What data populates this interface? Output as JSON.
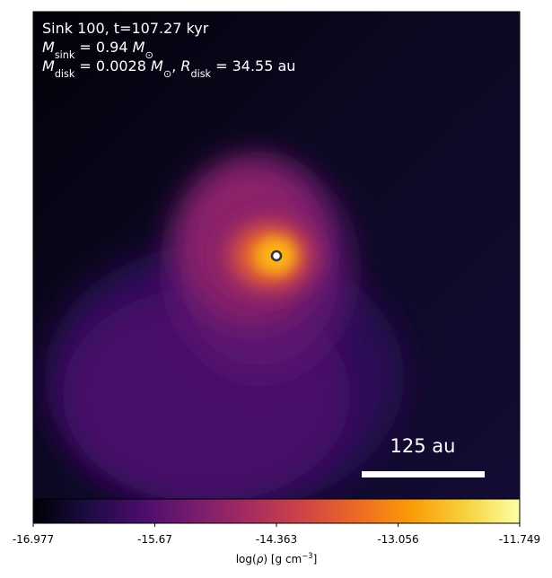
{
  "chart_data": {
    "type": "image",
    "annotations": [
      [
        {
          "t": "Sink 100, t=107.27 kyr"
        }
      ],
      [
        {
          "t": "M",
          "i": true
        },
        {
          "t": "sink",
          "sub": true
        },
        {
          "t": " = 0.94 "
        },
        {
          "t": "M",
          "i": true
        },
        {
          "t": "⊙",
          "sub": true
        }
      ],
      [
        {
          "t": "M",
          "i": true
        },
        {
          "t": "disk",
          "sub": true
        },
        {
          "t": " = 0.0028 "
        },
        {
          "t": "M",
          "i": true
        },
        {
          "t": "⊙",
          "sub": true
        },
        {
          "t": ", "
        },
        {
          "t": "R",
          "i": true
        },
        {
          "t": "disk",
          "sub": true
        },
        {
          "t": " = 34.55 au"
        }
      ]
    ],
    "scale_bar": {
      "label": "125 au"
    },
    "colorbar": {
      "colormap": "inferno",
      "lim": [
        -16.977,
        -11.749
      ],
      "ticks": [
        -16.977,
        -15.67,
        -14.363,
        -13.056,
        -11.749
      ],
      "label": [
        {
          "t": "log("
        },
        {
          "t": "ρ",
          "i": true
        },
        {
          "t": ") [g cm"
        },
        {
          "t": "−3",
          "sup": true
        },
        {
          "t": "]"
        }
      ]
    }
  }
}
